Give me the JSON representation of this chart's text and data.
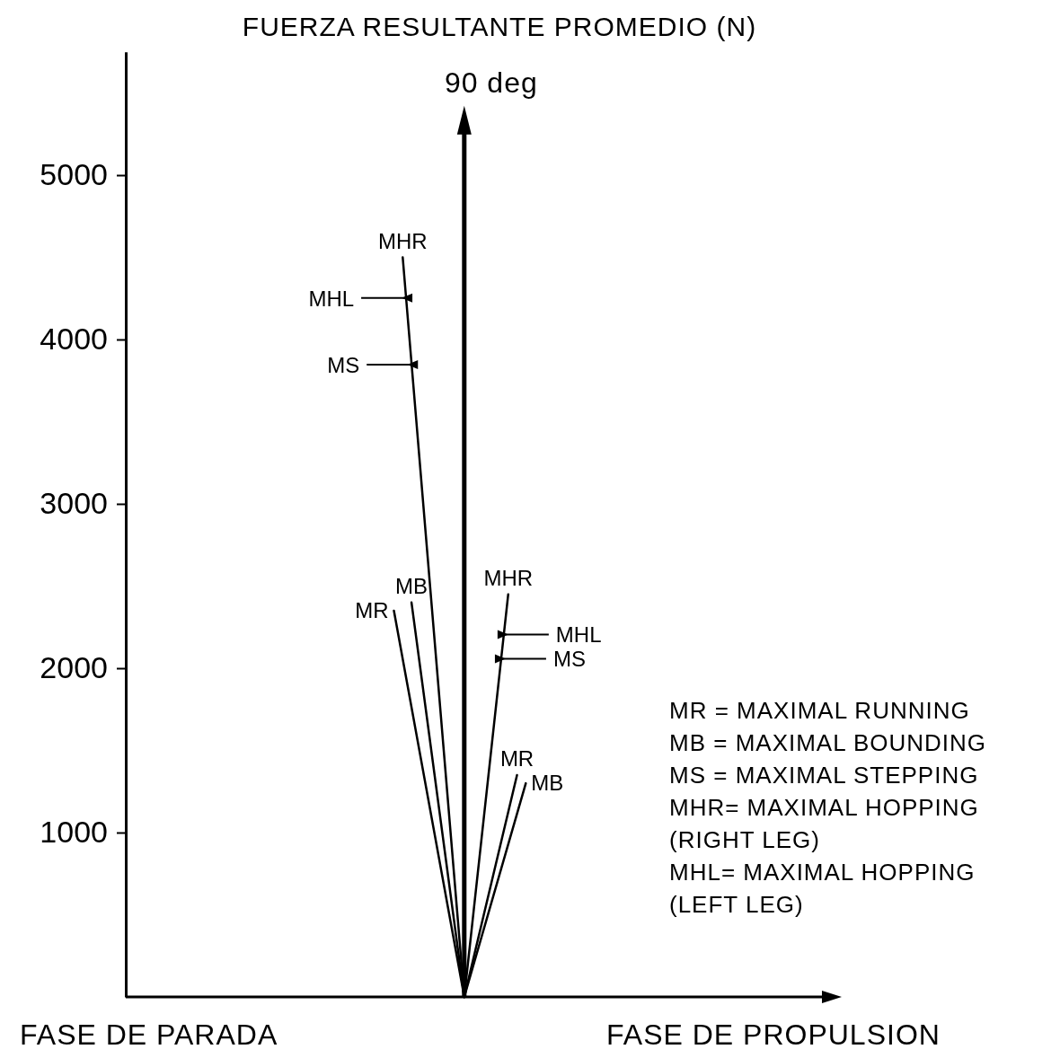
{
  "chart_data": {
    "type": "line",
    "ylabel": "FUERZA RESULTANTE PROMEDIO (N)",
    "categories": [
      null,
      null,
      null,
      null,
      null,
      null,
      null,
      null,
      null,
      null,
      null,
      null,
      null,
      null,
      null,
      null,
      null,
      null,
      null,
      null,
      null,
      null,
      null,
      null,
      null,
      null,
      null,
      null,
      null,
      null,
      null,
      null,
      null,
      null,
      null,
      null,
      null,
      null,
      null,
      null,
      null,
      null,
      null,
      null,
      null,
      null,
      null,
      null,
      null,
      null,
      null,
      null,
      null,
      null,
      null,
      null,
      null,
      null,
      null,
      null,
      null,
      null,
      null,
      null,
      null,
      null,
      null,
      null,
      null,
      null,
      null,
      null,
      null,
      null,
      null,
      null,
      null,
      null,
      null,
      null
    ],
    "series": [
      {
        "name": "MR",
        "color": "#000000",
        "values": [
          null,
          null,
          null,
          null,
          null,
          null,
          null,
          null,
          null,
          null,
          null,
          null,
          null,
          null,
          null,
          null,
          null,
          null,
          null,
          null,
          null,
          null,
          null,
          null,
          null,
          null,
          null,
          null,
          null,
          null,
          2350,
          null,
          null,
          null,
          null,
          null,
          null,
          null,
          0,
          null,
          null,
          null,
          null,
          null,
          null,
          null,
          null,
          null,
          null,
          null,
          null,
          null,
          null,
          null,
          null,
          null,
          null,
          null,
          null,
          null,
          null,
          null,
          null,
          null,
          null,
          null,
          null,
          null,
          null,
          null,
          null,
          null,
          null,
          null,
          null,
          null,
          null,
          null,
          null,
          null
        ]
      },
      {
        "name": "MB",
        "color": "#000000",
        "values": [
          null,
          null,
          null,
          null,
          null,
          null,
          null,
          null,
          null,
          null,
          null,
          null,
          null,
          null,
          null,
          null,
          null,
          null,
          null,
          null,
          null,
          null,
          null,
          null,
          null,
          null,
          null,
          null,
          null,
          null,
          null,
          null,
          2400,
          null,
          null,
          null,
          null,
          null,
          0,
          null,
          null,
          null,
          null,
          null,
          null,
          null,
          null,
          null,
          null,
          null,
          null,
          null,
          null,
          null,
          null,
          null,
          null,
          null,
          null,
          null,
          null,
          null,
          null,
          null,
          null,
          null,
          null,
          null,
          null,
          null,
          null,
          null,
          null,
          null,
          null,
          null,
          null,
          null,
          null,
          null
        ]
      },
      {
        "name": "MHR",
        "color": "#000000",
        "values": [
          null,
          null,
          null,
          null,
          null,
          null,
          null,
          null,
          null,
          null,
          null,
          null,
          null,
          null,
          null,
          null,
          null,
          null,
          null,
          null,
          null,
          null,
          null,
          null,
          null,
          null,
          null,
          null,
          null,
          null,
          null,
          4500,
          null,
          null,
          null,
          null,
          null,
          null,
          0,
          null,
          null,
          null,
          null,
          null,
          null,
          null,
          null,
          null,
          null,
          null,
          null,
          null,
          null,
          null,
          null,
          null,
          null,
          null,
          null,
          null,
          null,
          null,
          null,
          null,
          null,
          null,
          null,
          null,
          null,
          null,
          null,
          null,
          null,
          null,
          null,
          null,
          null,
          null,
          null,
          null
        ]
      },
      {
        "name": "MHR",
        "color": "#000000",
        "values": [
          null,
          null,
          null,
          null,
          null,
          null,
          null,
          null,
          null,
          null,
          null,
          null,
          null,
          null,
          null,
          null,
          null,
          null,
          null,
          null,
          null,
          null,
          null,
          null,
          null,
          null,
          null,
          null,
          null,
          null,
          null,
          null,
          null,
          null,
          null,
          null,
          null,
          null,
          0,
          null,
          null,
          null,
          null,
          2450,
          null,
          null,
          null,
          null,
          null,
          null,
          null,
          null,
          null,
          null,
          null,
          null,
          null,
          null,
          null,
          null,
          null,
          null,
          null,
          null,
          null,
          null,
          null,
          null,
          null,
          null,
          null,
          null,
          null,
          null,
          null,
          null,
          null,
          null,
          null,
          null
        ]
      },
      {
        "name": "MR",
        "color": "#000000",
        "values": [
          null,
          null,
          null,
          null,
          null,
          null,
          null,
          null,
          null,
          null,
          null,
          null,
          null,
          null,
          null,
          null,
          null,
          null,
          null,
          null,
          null,
          null,
          null,
          null,
          null,
          null,
          null,
          null,
          null,
          null,
          null,
          null,
          null,
          null,
          null,
          null,
          null,
          null,
          0,
          null,
          null,
          null,
          null,
          null,
          1350,
          null,
          null,
          null,
          null,
          null,
          null,
          null,
          null,
          null,
          null,
          null,
          null,
          null,
          null,
          null,
          null,
          null,
          null,
          null,
          null,
          null,
          null,
          null,
          null,
          null,
          null,
          null,
          null,
          null,
          null,
          null,
          null,
          null,
          null,
          null
        ]
      },
      {
        "name": "MB",
        "color": "#000000",
        "values": [
          null,
          null,
          null,
          null,
          null,
          null,
          null,
          null,
          null,
          null,
          null,
          null,
          null,
          null,
          null,
          null,
          null,
          null,
          null,
          null,
          null,
          null,
          null,
          null,
          null,
          null,
          null,
          null,
          null,
          null,
          null,
          null,
          null,
          null,
          null,
          null,
          null,
          null,
          0,
          null,
          null,
          null,
          null,
          null,
          null,
          1300,
          null,
          null,
          null,
          null,
          null,
          null,
          null,
          null,
          null,
          null,
          null,
          null,
          null,
          null,
          null,
          null,
          null,
          null,
          null,
          null,
          null,
          null,
          null,
          null,
          null,
          null,
          null,
          null,
          null,
          null,
          null,
          null,
          null,
          null
        ]
      }
    ],
    "ylim": [
      0,
      5750
    ],
    "yticks": [
      1000,
      2000,
      3000,
      4000,
      5000
    ],
    "tick_labels": "y",
    "annotations": [
      "90 deg",
      "FASE DE PARADA",
      "FASE DE PROPULSION",
      "MR = MAXIMAL RUNNING",
      "MB = MAXIMAL BOUNDING",
      "MS = MAXIMAL STEPPING",
      "MHR= MAXIMAL HOPPING",
      "(RIGHT LEG)",
      "MHL= MAXIMAL HOPPING",
      "(LEFT LEG)",
      "MHL",
      "MS",
      "MHL",
      "MS"
    ]
  }
}
